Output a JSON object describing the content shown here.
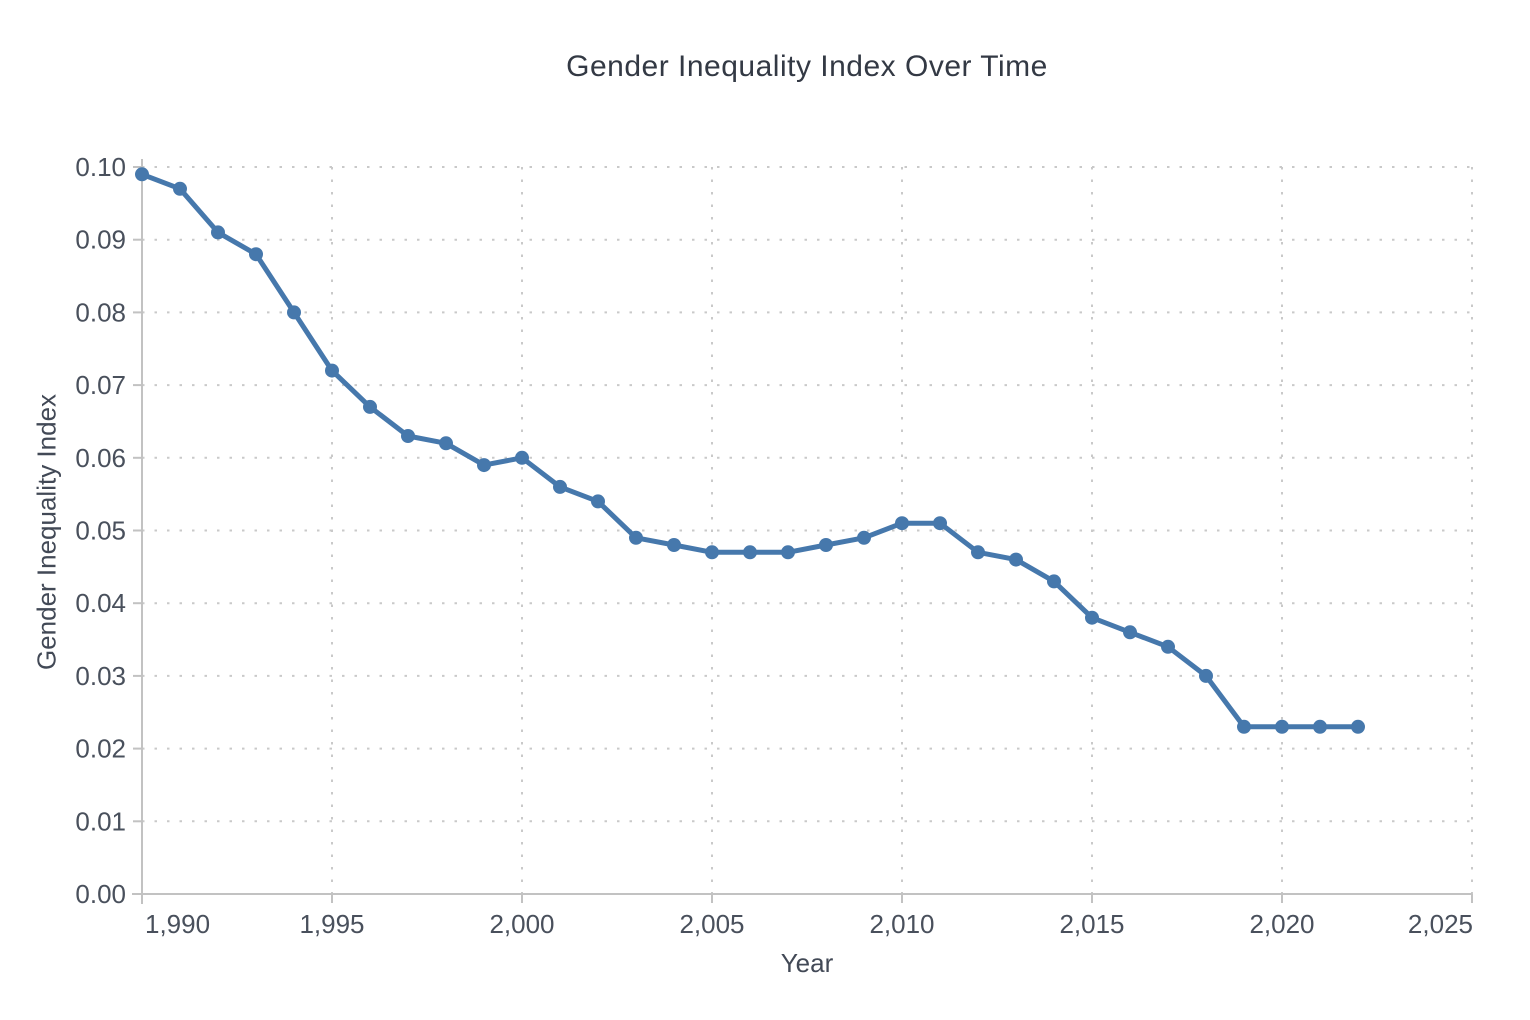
{
  "chart_data": {
    "type": "line",
    "title": "Gender Inequality Index Over Time",
    "xlabel": "Year",
    "ylabel": "Gender Inequality Index",
    "x": [
      1990,
      1991,
      1992,
      1993,
      1994,
      1995,
      1996,
      1997,
      1998,
      1999,
      2000,
      2001,
      2002,
      2003,
      2004,
      2005,
      2006,
      2007,
      2008,
      2009,
      2010,
      2011,
      2012,
      2013,
      2014,
      2015,
      2016,
      2017,
      2018,
      2019,
      2020,
      2021,
      2022
    ],
    "values": [
      0.099,
      0.097,
      0.091,
      0.088,
      0.08,
      0.072,
      0.067,
      0.063,
      0.062,
      0.059,
      0.06,
      0.056,
      0.054,
      0.049,
      0.048,
      0.047,
      0.047,
      0.047,
      0.048,
      0.049,
      0.051,
      0.051,
      0.047,
      0.046,
      0.043,
      0.038,
      0.036,
      0.034,
      0.03,
      0.023,
      0.023,
      0.023,
      0.023
    ],
    "xlim": [
      1990,
      2025
    ],
    "ylim": [
      0,
      0.1
    ],
    "x_ticks": [
      1990,
      1995,
      2000,
      2005,
      2010,
      2015,
      2020,
      2025
    ],
    "x_tick_labels": [
      "1,990",
      "1,995",
      "2,000",
      "2,005",
      "2,010",
      "2,015",
      "2,020",
      "2,025"
    ],
    "y_ticks": [
      0,
      0.01,
      0.02,
      0.03,
      0.04,
      0.05,
      0.06,
      0.07,
      0.08,
      0.09,
      0.1
    ],
    "y_tick_labels": [
      "0.00",
      "0.01",
      "0.02",
      "0.03",
      "0.04",
      "0.05",
      "0.06",
      "0.07",
      "0.08",
      "0.09",
      "0.10"
    ],
    "grid": "dotted both axes",
    "legend": "none",
    "marker": "circle",
    "line_width": 5,
    "marker_radius": 7
  },
  "colors": {
    "line": "#4678ac",
    "grid": "#c9c9c9",
    "axis": "#c2c2c2",
    "tick_text": "#49505c",
    "title_text": "#333944",
    "background": "#ffffff"
  }
}
